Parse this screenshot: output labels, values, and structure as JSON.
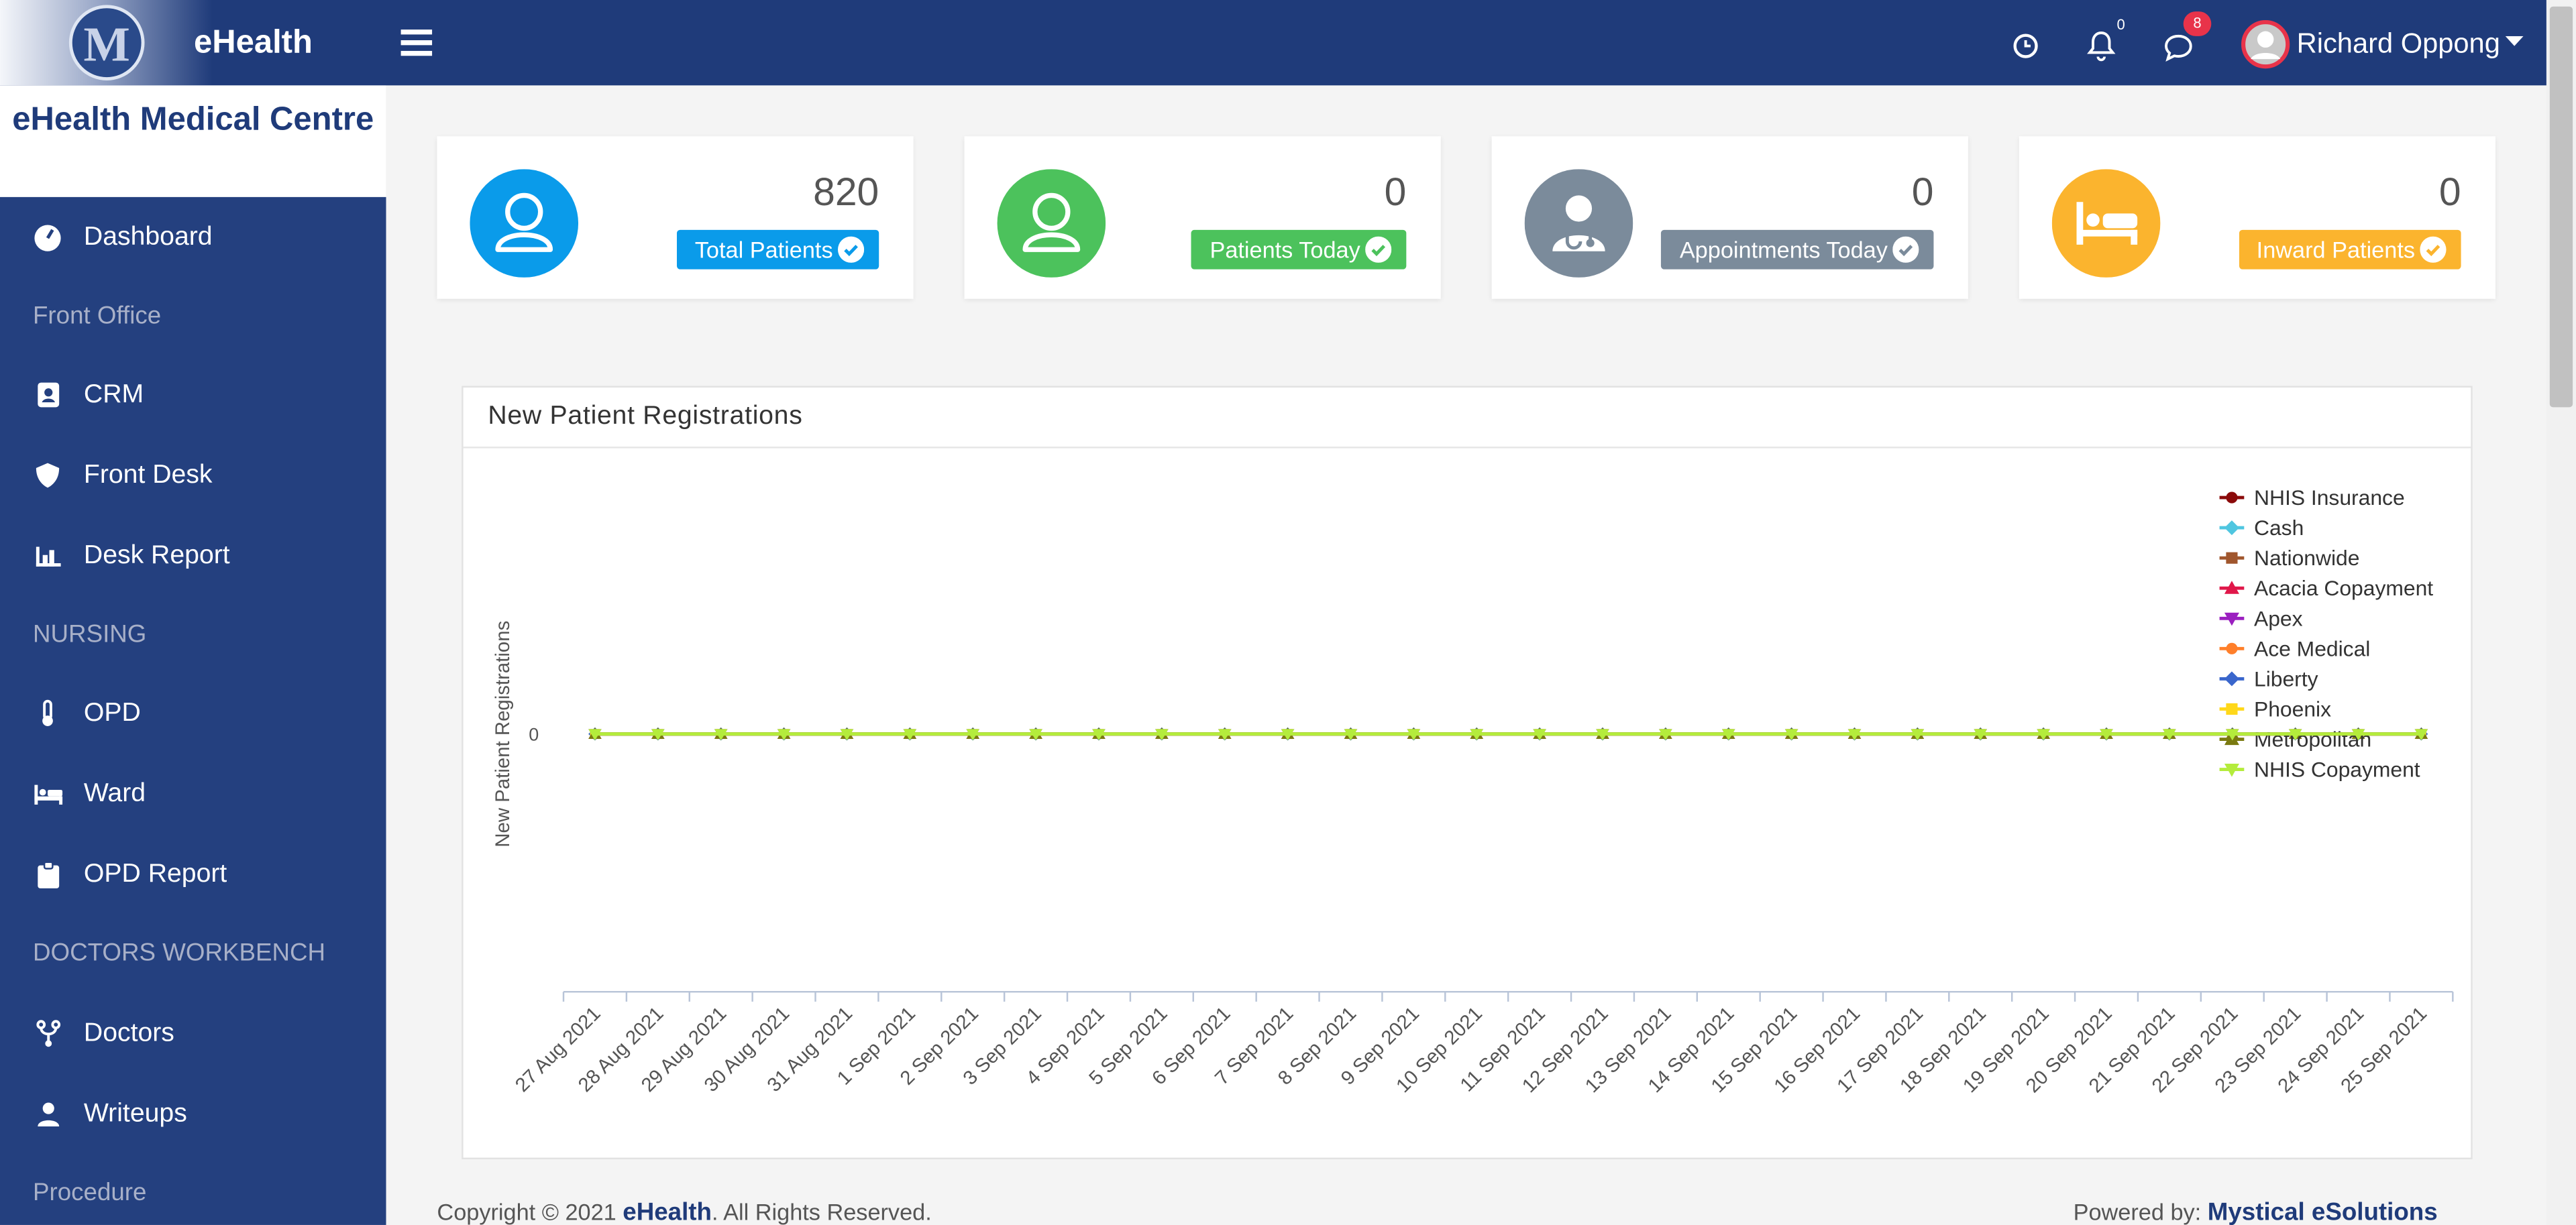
{
  "header": {
    "brand": "eHealth",
    "notifications": "0",
    "messages": "8",
    "user": "Richard Oppong"
  },
  "sidebar": {
    "title": "eHealth Medical Centre",
    "items": [
      {
        "kind": "link",
        "label": "Dashboard"
      },
      {
        "kind": "section",
        "label": "Front Office"
      },
      {
        "kind": "link",
        "label": "CRM"
      },
      {
        "kind": "link",
        "label": "Front Desk"
      },
      {
        "kind": "link",
        "label": "Desk Report"
      },
      {
        "kind": "section",
        "label": "NURSING"
      },
      {
        "kind": "link",
        "label": "OPD"
      },
      {
        "kind": "link",
        "label": "Ward"
      },
      {
        "kind": "link",
        "label": "OPD Report"
      },
      {
        "kind": "section",
        "label": "DOCTORS WORKBENCH"
      },
      {
        "kind": "link",
        "label": "Doctors"
      },
      {
        "kind": "link",
        "label": "Writeups"
      },
      {
        "kind": "section",
        "label": "Procedure"
      }
    ]
  },
  "cards": [
    {
      "value": "820",
      "label": "Total Patients",
      "color": "#0a9bea"
    },
    {
      "value": "0",
      "label": "Patients Today",
      "color": "#4cc25c"
    },
    {
      "value": "0",
      "label": "Appointments Today",
      "color": "#7b8b9b"
    },
    {
      "value": "0",
      "label": "Inward Patients",
      "color": "#fbb42e"
    }
  ],
  "chart_data": {
    "type": "line",
    "title": "New Patient Registrations",
    "y_label": "New Patient Registrations",
    "categories": [
      "27 Aug 2021",
      "28 Aug 2021",
      "29 Aug 2021",
      "30 Aug 2021",
      "31 Aug 2021",
      "1 Sep 2021",
      "2 Sep 2021",
      "3 Sep 2021",
      "4 Sep 2021",
      "5 Sep 2021",
      "6 Sep 2021",
      "7 Sep 2021",
      "8 Sep 2021",
      "9 Sep 2021",
      "10 Sep 2021",
      "11 Sep 2021",
      "12 Sep 2021",
      "13 Sep 2021",
      "14 Sep 2021",
      "15 Sep 2021",
      "16 Sep 2021",
      "17 Sep 2021",
      "18 Sep 2021",
      "19 Sep 2021",
      "20 Sep 2021",
      "21 Sep 2021",
      "22 Sep 2021",
      "23 Sep 2021",
      "24 Sep 2021",
      "25 Sep 2021"
    ],
    "ylim": [
      -1,
      1
    ],
    "yticks": [
      0
    ],
    "grid": false,
    "legend": "top-right",
    "series": [
      {
        "name": "NHIS Insurance",
        "color": "#8b0a0a",
        "marker": "circle",
        "values": [
          0,
          0,
          0,
          0,
          0,
          0,
          0,
          0,
          0,
          0,
          0,
          0,
          0,
          0,
          0,
          0,
          0,
          0,
          0,
          0,
          0,
          0,
          0,
          0,
          0,
          0,
          0,
          0,
          0,
          0
        ]
      },
      {
        "name": "Cash",
        "color": "#4fc6e0",
        "marker": "diamond",
        "values": [
          0,
          0,
          0,
          0,
          0,
          0,
          0,
          0,
          0,
          0,
          0,
          0,
          0,
          0,
          0,
          0,
          0,
          0,
          0,
          0,
          0,
          0,
          0,
          0,
          0,
          0,
          0,
          0,
          0,
          0
        ]
      },
      {
        "name": "Nationwide",
        "color": "#a0562d",
        "marker": "square",
        "values": [
          0,
          0,
          0,
          0,
          0,
          0,
          0,
          0,
          0,
          0,
          0,
          0,
          0,
          0,
          0,
          0,
          0,
          0,
          0,
          0,
          0,
          0,
          0,
          0,
          0,
          0,
          0,
          0,
          0,
          0
        ]
      },
      {
        "name": "Acacia Copayment",
        "color": "#e0174a",
        "marker": "triangle",
        "values": [
          0,
          0,
          0,
          0,
          0,
          0,
          0,
          0,
          0,
          0,
          0,
          0,
          0,
          0,
          0,
          0,
          0,
          0,
          0,
          0,
          0,
          0,
          0,
          0,
          0,
          0,
          0,
          0,
          0,
          0
        ]
      },
      {
        "name": "Apex",
        "color": "#9b1fc0",
        "marker": "triangle-down",
        "values": [
          0,
          0,
          0,
          0,
          0,
          0,
          0,
          0,
          0,
          0,
          0,
          0,
          0,
          0,
          0,
          0,
          0,
          0,
          0,
          0,
          0,
          0,
          0,
          0,
          0,
          0,
          0,
          0,
          0,
          0
        ]
      },
      {
        "name": "Ace Medical",
        "color": "#ff7f2a",
        "marker": "circle",
        "values": [
          0,
          0,
          0,
          0,
          0,
          0,
          0,
          0,
          0,
          0,
          0,
          0,
          0,
          0,
          0,
          0,
          0,
          0,
          0,
          0,
          0,
          0,
          0,
          0,
          0,
          0,
          0,
          0,
          0,
          0
        ]
      },
      {
        "name": "Liberty",
        "color": "#3a66cc",
        "marker": "diamond",
        "values": [
          0,
          0,
          0,
          0,
          0,
          0,
          0,
          0,
          0,
          0,
          0,
          0,
          0,
          0,
          0,
          0,
          0,
          0,
          0,
          0,
          0,
          0,
          0,
          0,
          0,
          0,
          0,
          0,
          0,
          0
        ]
      },
      {
        "name": "Phoenix",
        "color": "#ffd81a",
        "marker": "square",
        "values": [
          0,
          0,
          0,
          0,
          0,
          0,
          0,
          0,
          0,
          0,
          0,
          0,
          0,
          0,
          0,
          0,
          0,
          0,
          0,
          0,
          0,
          0,
          0,
          0,
          0,
          0,
          0,
          0,
          0,
          0
        ]
      },
      {
        "name": "Metropolitan",
        "color": "#7a7a10",
        "marker": "triangle",
        "values": [
          0,
          0,
          0,
          0,
          0,
          0,
          0,
          0,
          0,
          0,
          0,
          0,
          0,
          0,
          0,
          0,
          0,
          0,
          0,
          0,
          0,
          0,
          0,
          0,
          0,
          0,
          0,
          0,
          0,
          0
        ]
      },
      {
        "name": "NHIS Copayment",
        "color": "#b4ec3c",
        "marker": "triangle-down",
        "values": [
          0,
          0,
          0,
          0,
          0,
          0,
          0,
          0,
          0,
          0,
          0,
          0,
          0,
          0,
          0,
          0,
          0,
          0,
          0,
          0,
          0,
          0,
          0,
          0,
          0,
          0,
          0,
          0,
          0,
          0
        ]
      }
    ]
  },
  "footer": {
    "copyright": "Copyright © 2021",
    "brand": "eHealth",
    "rights": ". All Rights Reserved.",
    "powered": "Powered by:",
    "company": "Mystical eSolutions"
  }
}
